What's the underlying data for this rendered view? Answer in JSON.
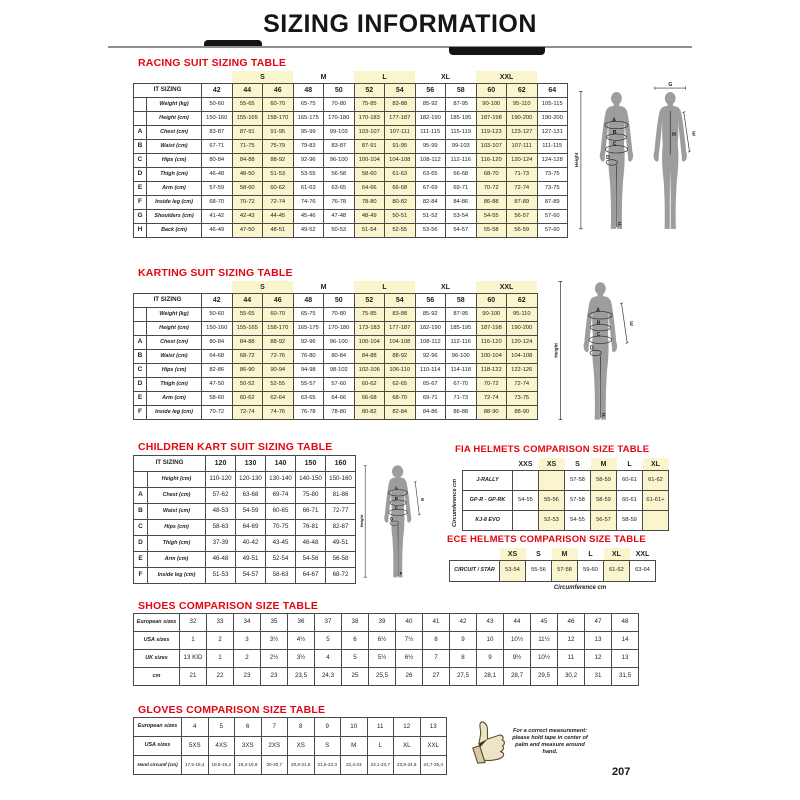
{
  "page": {
    "title": "SIZING INFORMATION",
    "page_number": "207"
  },
  "sections": {
    "racing": {
      "heading": "RACING SUIT SIZING TABLE",
      "it_sizing_label": "IT SIZING",
      "group_labels": [
        {
          "label": "S",
          "hl": true
        },
        {
          "label": "M",
          "hl": false
        },
        {
          "label": "L",
          "hl": true
        },
        {
          "label": "XL",
          "hl": false
        },
        {
          "label": "XXL",
          "hl": true
        }
      ],
      "sizes": [
        "42",
        "44",
        "46",
        "48",
        "50",
        "52",
        "54",
        "56",
        "58",
        "60",
        "62",
        "64"
      ],
      "highlight_cols": [
        1,
        2,
        5,
        6,
        9,
        10
      ],
      "rows": [
        {
          "letter": "",
          "label": "Weight (kg)",
          "values": [
            "50-60",
            "55-65",
            "60-70",
            "65-75",
            "70-80",
            "75-85",
            "83-88",
            "85-92",
            "87-95",
            "90-100",
            "95-110",
            "105-115"
          ]
        },
        {
          "letter": "",
          "label": "Height (cm)",
          "values": [
            "150-160",
            "155-165",
            "158-170",
            "165-175",
            "170-180",
            "170-183",
            "177-187",
            "182-190",
            "185-195",
            "187-198",
            "190-200",
            "190-200"
          ]
        },
        {
          "letter": "A",
          "label": "Chest (cm)",
          "values": [
            "83-87",
            "87-91",
            "91-95",
            "95-99",
            "99-103",
            "103-107",
            "107-111",
            "111-115",
            "115-119",
            "119-123",
            "123-127",
            "127-131"
          ]
        },
        {
          "letter": "B",
          "label": "Waist (cm)",
          "values": [
            "67-71",
            "71-75",
            "75-79",
            "79-83",
            "83-87",
            "87-91",
            "91-95",
            "95-99",
            "99-103",
            "103-107",
            "107-111",
            "111-115"
          ]
        },
        {
          "letter": "C",
          "label": "Hips (cm)",
          "values": [
            "80-84",
            "84-88",
            "88-92",
            "92-96",
            "96-100",
            "100-104",
            "104-108",
            "108-112",
            "112-116",
            "116-120",
            "120-124",
            "124-128"
          ]
        },
        {
          "letter": "D",
          "label": "Thigh (cm)",
          "values": [
            "46-48",
            "48-50",
            "51-53",
            "53-55",
            "56-58",
            "58-60",
            "61-63",
            "63-65",
            "66-68",
            "68-70",
            "71-73",
            "73-75"
          ]
        },
        {
          "letter": "E",
          "label": "Arm (cm)",
          "values": [
            "57-59",
            "58-60",
            "60-62",
            "61-63",
            "63-65",
            "64-66",
            "66-68",
            "67-69",
            "69-71",
            "70-72",
            "72-74",
            "73-75"
          ]
        },
        {
          "letter": "F",
          "label": "Inside leg (cm)",
          "values": [
            "68-70",
            "70-72",
            "72-74",
            "74-76",
            "76-78",
            "78-80",
            "80-82",
            "82-84",
            "84-86",
            "86-88",
            "87-89",
            "87-89"
          ]
        },
        {
          "letter": "G",
          "label": "Shoulders (cm)",
          "values": [
            "41-42",
            "42-43",
            "44-45",
            "45-46",
            "47-48",
            "48-49",
            "50-51",
            "51-52",
            "53-54",
            "54-55",
            "56-57",
            "57-60"
          ]
        },
        {
          "letter": "H",
          "label": "Back (cm)",
          "values": [
            "46-49",
            "47-50",
            "48-51",
            "49-52",
            "50-53",
            "51-54",
            "52-55",
            "53-56",
            "54-57",
            "55-58",
            "56-59",
            "57-60"
          ]
        }
      ]
    },
    "karting": {
      "heading": "KARTING SUIT SIZING TABLE",
      "it_sizing_label": "IT SIZING",
      "group_labels": [
        {
          "label": "S",
          "hl": true
        },
        {
          "label": "M",
          "hl": false
        },
        {
          "label": "L",
          "hl": true
        },
        {
          "label": "XL",
          "hl": false
        },
        {
          "label": "XXL",
          "hl": true
        }
      ],
      "sizes": [
        "42",
        "44",
        "46",
        "48",
        "50",
        "52",
        "54",
        "56",
        "58",
        "60",
        "62"
      ],
      "highlight_cols": [
        1,
        2,
        5,
        6,
        9,
        10
      ],
      "rows": [
        {
          "letter": "",
          "label": "Weight (kg)",
          "values": [
            "50-60",
            "55-65",
            "60-70",
            "65-75",
            "70-80",
            "75-85",
            "83-88",
            "85-92",
            "87-95",
            "90-100",
            "95-110"
          ]
        },
        {
          "letter": "",
          "label": "Height (cm)",
          "values": [
            "150-160",
            "155-165",
            "158-170",
            "165-175",
            "170-180",
            "173-183",
            "177-187",
            "182-190",
            "185-195",
            "187-198",
            "190-200"
          ]
        },
        {
          "letter": "A",
          "label": "Chest (cm)",
          "values": [
            "80-84",
            "84-88",
            "88-92",
            "92-96",
            "96-100",
            "100-104",
            "104-108",
            "108-112",
            "112-116",
            "116-120",
            "120-124"
          ]
        },
        {
          "letter": "B",
          "label": "Waist (cm)",
          "values": [
            "64-68",
            "68-72",
            "72-76",
            "76-80",
            "80-84",
            "84-88",
            "88-92",
            "92-96",
            "96-100",
            "100-104",
            "104-108"
          ]
        },
        {
          "letter": "C",
          "label": "Hips (cm)",
          "values": [
            "82-86",
            "86-90",
            "90-94",
            "94-98",
            "98-102",
            "102-106",
            "106-110",
            "110-114",
            "114-118",
            "118-122",
            "122-126"
          ]
        },
        {
          "letter": "D",
          "label": "Thigh (cm)",
          "values": [
            "47-50",
            "50-52",
            "52-55",
            "55-57",
            "57-60",
            "60-62",
            "62-65",
            "65-67",
            "67-70",
            "70-72",
            "72-74"
          ]
        },
        {
          "letter": "E",
          "label": "Arm (cm)",
          "values": [
            "58-60",
            "60-62",
            "62-64",
            "63-65",
            "64-66",
            "66-68",
            "68-70",
            "69-71",
            "71-73",
            "72-74",
            "73-75"
          ]
        },
        {
          "letter": "F",
          "label": "Inside leg (cm)",
          "values": [
            "70-72",
            "72-74",
            "74-76",
            "76-78",
            "78-80",
            "80-82",
            "82-84",
            "84-86",
            "86-88",
            "88-90",
            "88-90"
          ]
        }
      ]
    },
    "children": {
      "heading": "CHILDREN KART SUIT SIZING TABLE",
      "it_sizing_label": "IT SIZING",
      "sizes": [
        "120",
        "130",
        "140",
        "150",
        "160"
      ],
      "highlight_cols": [],
      "rows": [
        {
          "letter": "",
          "label": "Height (cm)",
          "values": [
            "110-120",
            "120-130",
            "130-140",
            "140-150",
            "150-160"
          ]
        },
        {
          "letter": "A",
          "label": "Chest (cm)",
          "values": [
            "57-62",
            "63-68",
            "69-74",
            "75-80",
            "81-86"
          ]
        },
        {
          "letter": "B",
          "label": "Waist (cm)",
          "values": [
            "48-53",
            "54-59",
            "60-65",
            "66-71",
            "72-77"
          ]
        },
        {
          "letter": "C",
          "label": "Hips (cm)",
          "values": [
            "58-63",
            "64-69",
            "70-75",
            "76-81",
            "82-87"
          ]
        },
        {
          "letter": "D",
          "label": "Thigh (cm)",
          "values": [
            "37-39",
            "40-42",
            "43-45",
            "46-48",
            "49-51"
          ]
        },
        {
          "letter": "E",
          "label": "Arm (cm)",
          "values": [
            "46-48",
            "49-51",
            "52-54",
            "54-56",
            "56-58"
          ]
        },
        {
          "letter": "F",
          "label": "Inside leg (cm)",
          "values": [
            "51-53",
            "54-57",
            "58-63",
            "64-67",
            "68-72"
          ]
        }
      ]
    },
    "fia": {
      "heading": "FIA HELMETS COMPARISON SIZE TABLE",
      "side_label": "Circumference cm",
      "sizes": [
        "XXS",
        "XS",
        "S",
        "M",
        "L",
        "XL"
      ],
      "highlight_cols": [
        1,
        3,
        5
      ],
      "rows": [
        {
          "label": "J-RALLY",
          "values": [
            "",
            "",
            "57-58",
            "58-59",
            "60-61",
            "61-62"
          ]
        },
        {
          "label": "GP-R - GP-RK",
          "values": [
            "54-55",
            "55-56",
            "57-58",
            "58-59",
            "60-61",
            "61-61+"
          ]
        },
        {
          "label": "KJ-8 EVO",
          "values": [
            "",
            "52-53",
            "54-55",
            "56-57",
            "58-59",
            ""
          ]
        }
      ]
    },
    "ece": {
      "heading": "ECE HELMETS COMPARISON SIZE TABLE",
      "bottom_label": "Circumference cm",
      "sizes": [
        "XS",
        "S",
        "M",
        "L",
        "XL",
        "XXL"
      ],
      "highlight_cols": [
        0,
        2,
        4
      ],
      "rows": [
        {
          "label": "CIRCUIT / STAR",
          "values": [
            "53-54",
            "55-56",
            "57-58",
            "59-60",
            "61-62",
            "63-64"
          ]
        }
      ]
    },
    "shoes": {
      "heading": "SHOES COMPARISON SIZE TABLE",
      "highlight_cols": [],
      "rows": [
        {
          "label": "European sizes",
          "values": [
            "32",
            "33",
            "34",
            "35",
            "36",
            "37",
            "38",
            "39",
            "40",
            "41",
            "42",
            "43",
            "44",
            "45",
            "46",
            "47",
            "48"
          ]
        },
        {
          "label": "USA sizes",
          "values": [
            "1",
            "2",
            "3",
            "3½",
            "4½",
            "5",
            "6",
            "6½",
            "7½",
            "8",
            "9",
            "10",
            "10½",
            "11½",
            "12",
            "13",
            "14"
          ]
        },
        {
          "label": "UK sizes",
          "values": [
            "13 KID",
            "1",
            "2",
            "2½",
            "3½",
            "4",
            "5",
            "5½",
            "6½",
            "7",
            "8",
            "9",
            "9½",
            "10½",
            "11",
            "12",
            "13"
          ]
        },
        {
          "label": "cm",
          "values": [
            "21",
            "22",
            "23",
            "23",
            "23,5",
            "24,3",
            "25",
            "25,5",
            "26",
            "27",
            "27,5",
            "28,1",
            "28,7",
            "29,5",
            "30,2",
            "31",
            "31,5"
          ]
        }
      ]
    },
    "gloves": {
      "heading": "GLOVES COMPARISON SIZE TABLE",
      "note": "For a correct measurement: please hold tape in center of palm and measure around hand.",
      "highlight_cols": [],
      "rows": [
        {
          "label": "European sizes",
          "values": [
            "4",
            "5",
            "6",
            "7",
            "8",
            "9",
            "10",
            "11",
            "12",
            "13"
          ]
        },
        {
          "label": "USA sizes",
          "values": [
            "5XS",
            "4XS",
            "3XS",
            "2XS",
            "XS",
            "S",
            "M",
            "L",
            "XL",
            "XXL"
          ]
        },
        {
          "label": "Hand circumf (cm)",
          "values": [
            "17,5-18,4",
            "18,5-19,2",
            "19,3-19,9",
            "20-20,7",
            "20,8-21,5",
            "21,6-22,3",
            "22,4-23",
            "23,1-23,7",
            "23,8-24,6",
            "24,7-25,4"
          ]
        }
      ]
    }
  },
  "figures": {
    "racing": {
      "height_label": "Height",
      "a": "A",
      "b": "B",
      "c": "C",
      "d": "D",
      "e": "E",
      "f": "F",
      "g": "G",
      "h": "H"
    },
    "karting": {
      "height_label": "Height",
      "a": "A",
      "b": "B",
      "c": "C",
      "d": "D",
      "e": "E",
      "f": "F"
    },
    "children": {
      "height_label": "Height",
      "a": "A",
      "b": "B",
      "c": "C",
      "d": "D",
      "e": "E",
      "f": "F"
    }
  },
  "colors": {
    "accent_red": "#e30613",
    "highlight_yellow": "#fbf5cd",
    "silhouette_gray": "#9d9d9d"
  }
}
